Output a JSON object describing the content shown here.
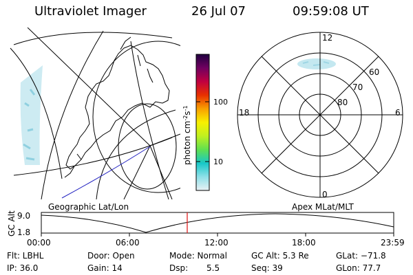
{
  "header": {
    "title": "Ultraviolet Imager",
    "date": "26 Jul 07",
    "time": "09:59:08 UT"
  },
  "colorbar": {
    "unit_html": "photon cm<tspan baseline-shift=\"super\" font-size=\"8\">-2</tspan>s<tspan baseline-shift=\"super\" font-size=\"8\">-1</tspan>",
    "tick_high": "100",
    "tick_low": "10"
  },
  "polar": {
    "labels": {
      "top": "12",
      "left": "18",
      "right": "6",
      "bottom": "0"
    },
    "lat_labels": [
      "60",
      "70",
      "80"
    ]
  },
  "panel_labels": {
    "left": "Geographic Lat/Lon",
    "right": "Apex MLat/MLT"
  },
  "gc_alt_plot": {
    "ylabel": "GC Alt",
    "y_ticks": [
      "9.0",
      "1.8"
    ],
    "x_ticks": [
      "00:00",
      "06:00",
      "12:00",
      "18:00",
      "23:59"
    ]
  },
  "info": {
    "row1": {
      "filter": "Flt: LBHL",
      "door": "Door: Open",
      "mode": "Mode: Normal",
      "gc_alt": "GC Alt: 5.3 Re",
      "glat": "GLat: −71.8"
    },
    "row2": {
      "ip": "IP: 36.0",
      "gain": "Gain: 14",
      "dsp_label": "Dsp:",
      "dsp_value": "5.5",
      "seq": "Seq: 39",
      "glon": "GLon: 77.7"
    }
  },
  "colors": {
    "colorbar_stops": [
      "#e8f0f4",
      "#8ee0e8",
      "#18c8c8",
      "#60e050",
      "#c0f020",
      "#f8f000",
      "#f8a000",
      "#e83000",
      "#c00040",
      "#700060",
      "#200040"
    ],
    "orbit_track": "#2020c0",
    "time_marker": "#e02020",
    "aurora": "#b8e4ee"
  }
}
